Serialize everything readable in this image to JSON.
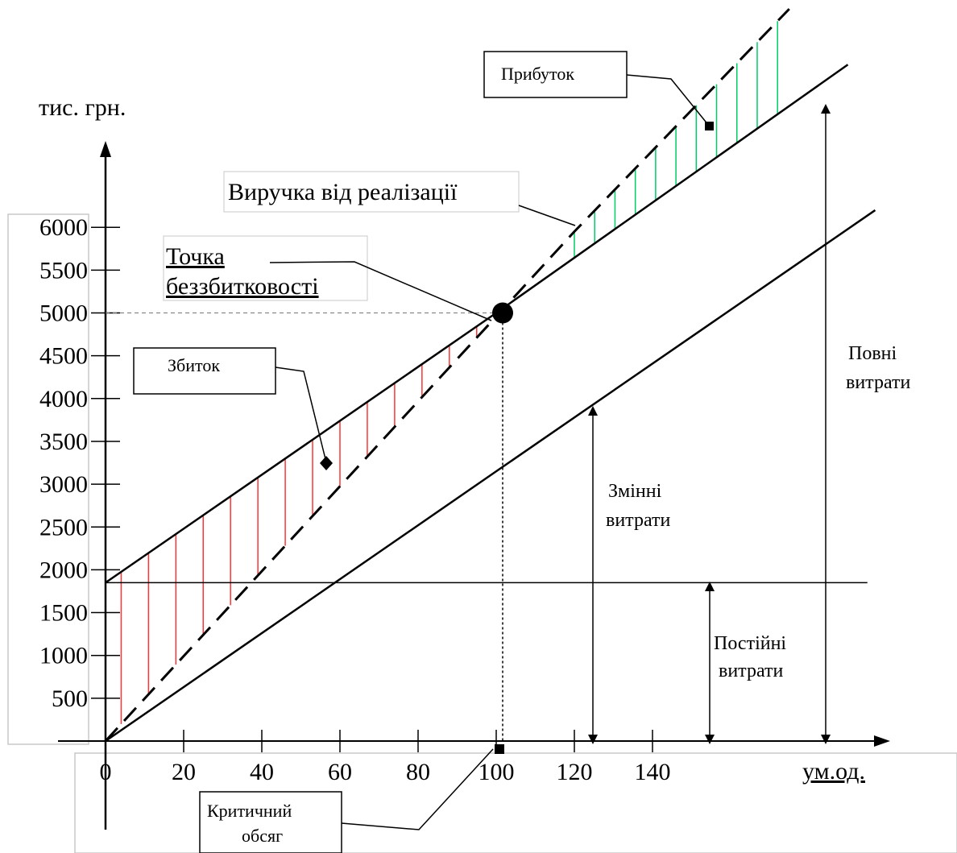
{
  "chart_data": {
    "type": "line",
    "title": "",
    "ylabel": "тис. грн.",
    "xlabel": "ум.од.",
    "xlim": [
      0,
      200
    ],
    "ylim": [
      0,
      6000
    ],
    "x_ticks": [
      0,
      20,
      40,
      60,
      80,
      100,
      120,
      140
    ],
    "y_ticks": [
      500,
      1000,
      1500,
      2000,
      2500,
      3000,
      3500,
      4000,
      4500,
      5000,
      5500,
      6000
    ],
    "series": [
      {
        "name": "Виручка від реалізації",
        "x": [
          0,
          120,
          175
        ],
        "y": [
          0,
          5950,
          8550
        ]
      },
      {
        "name": "Повні витрати",
        "x": [
          0,
          100,
          190
        ],
        "y": [
          1850,
          5000,
          7900
        ]
      },
      {
        "name": "Змінні витрати",
        "x": [
          0,
          100,
          197
        ],
        "y": [
          0,
          3150,
          6200
        ]
      },
      {
        "name": "Постійні витрати",
        "x": [
          0,
          195
        ],
        "y": [
          1850,
          1850
        ]
      }
    ],
    "break_even": {
      "x": 100,
      "y": 5000
    },
    "annotations": {
      "profit": "Прибуток",
      "loss": "Збиток",
      "break_even_l1": "Точка",
      "break_even_l2": "беззбитковості",
      "critical_l1": "Критичний",
      "critical_l2": "обсяг",
      "variable_l1": "Змінні",
      "variable_l2": "витрати",
      "fixed_l1": "Постійні",
      "fixed_l2": "витрати",
      "total_l1": "Повні",
      "total_l2": "витрати"
    },
    "colors": {
      "loss_hatch": "#ff3333",
      "profit_hatch": "#00cc66",
      "axis": "#000000"
    }
  }
}
